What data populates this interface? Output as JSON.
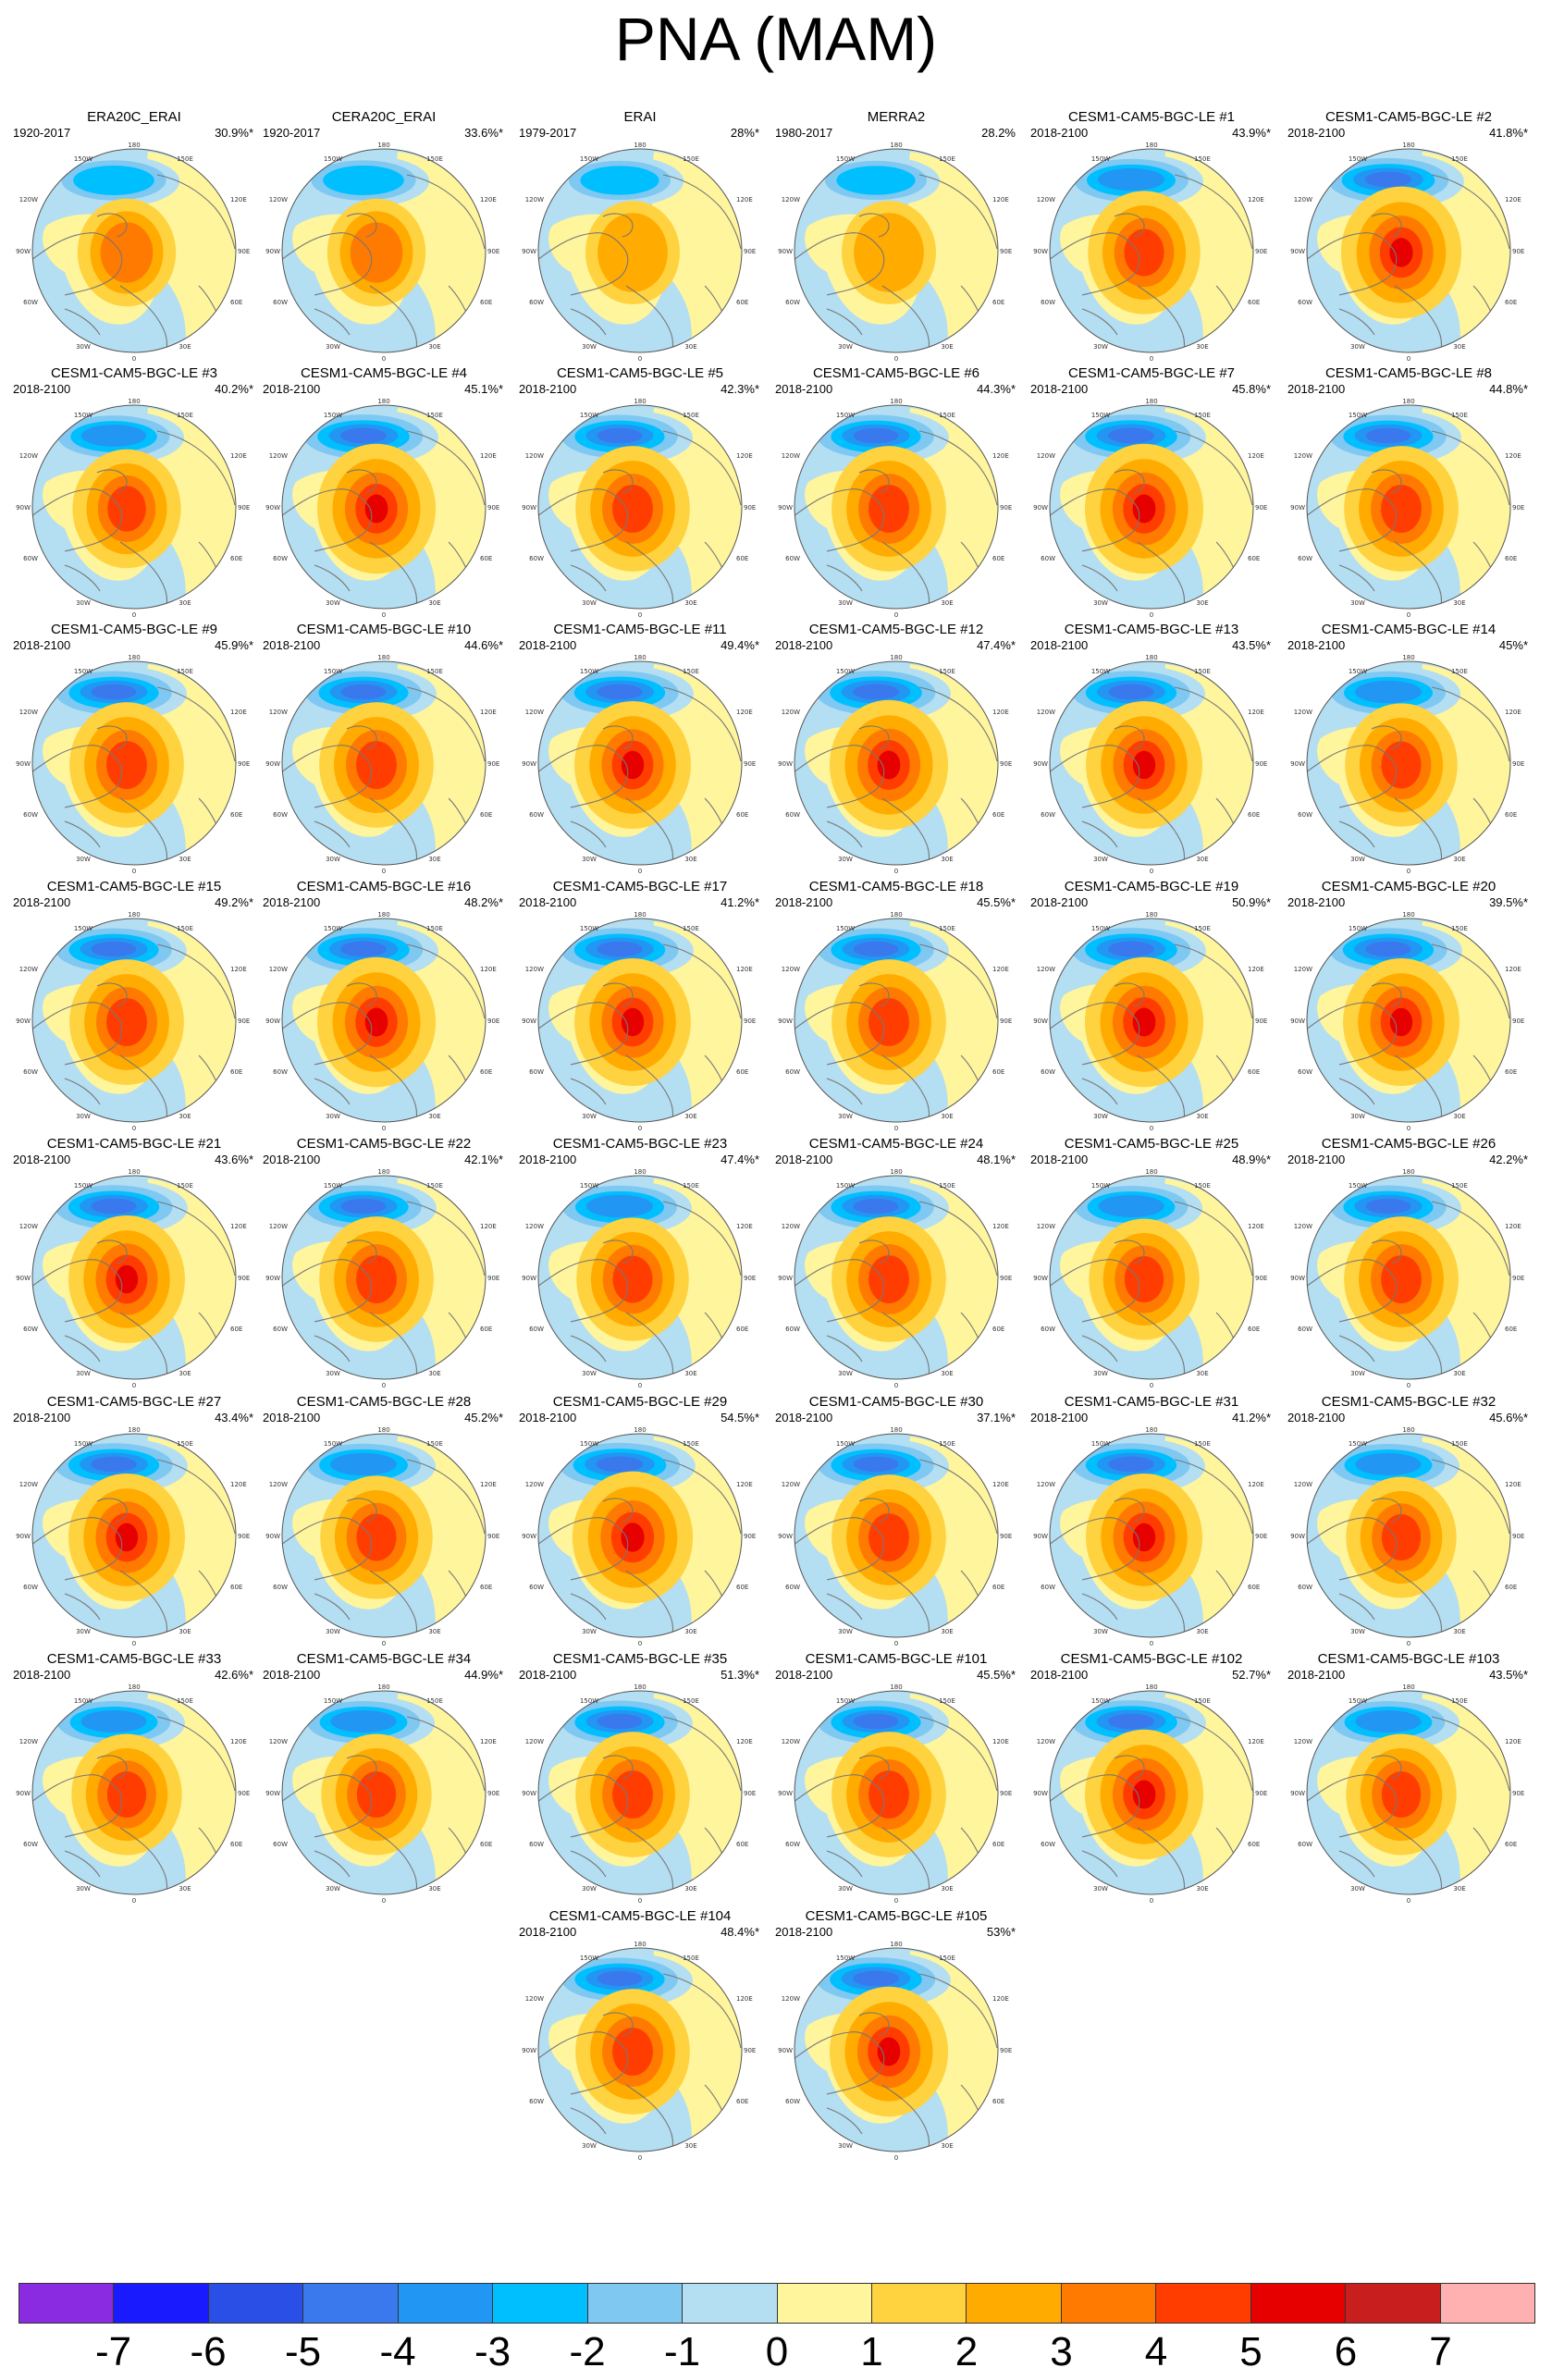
{
  "figure": {
    "title": "PNA (MAM)"
  },
  "colorbar": {
    "colors": [
      "#8a2be2",
      "#1a1aff",
      "#2a4fe6",
      "#3a78ee",
      "#2196f3",
      "#00bfff",
      "#7ec8f2",
      "#b4def2",
      "#fff59d",
      "#ffd23f",
      "#ffab00",
      "#ff7a00",
      "#ff3d00",
      "#e60000",
      "#c81e1e",
      "#ffb0b0"
    ],
    "labels": [
      "-7",
      "-6",
      "-5",
      "-4",
      "-3",
      "-2",
      "-1",
      "0",
      "1",
      "2",
      "3",
      "4",
      "5",
      "6",
      "7"
    ]
  },
  "map_labels": {
    "lon_180": "180",
    "lon_150w": "150W",
    "lon_150e": "150E",
    "lon_120w": "120W",
    "lon_120e": "120E",
    "lon_90w": "90W",
    "lon_90e": "90E",
    "lon_60w": "60W",
    "lon_60e": "60E",
    "lon_30w": "30W",
    "lon_30e": "30E",
    "lon_0": "0"
  },
  "panels": [
    {
      "name": "ERA20C_ERAI",
      "period": "1920-2017",
      "pct": "30.9%*",
      "intensity": 0.45
    },
    {
      "name": "CERA20C_ERAI",
      "period": "1920-2017",
      "pct": "33.6%*",
      "intensity": 0.45
    },
    {
      "name": "ERAI",
      "period": "1979-2017",
      "pct": "28%*",
      "intensity": 0.35
    },
    {
      "name": "MERRA2",
      "period": "1980-2017",
      "pct": "28.2%",
      "intensity": 0.35
    },
    {
      "name": "CESM1-CAM5-BGC-LE #1",
      "period": "2018-2100",
      "pct": "43.9%*",
      "intensity": 0.8
    },
    {
      "name": "CESM1-CAM5-BGC-LE #2",
      "period": "2018-2100",
      "pct": "41.8%*",
      "intensity": 1.0
    },
    {
      "name": "CESM1-CAM5-BGC-LE #3",
      "period": "2018-2100",
      "pct": "40.2%*",
      "intensity": 0.7
    },
    {
      "name": "CESM1-CAM5-BGC-LE #4",
      "period": "2018-2100",
      "pct": "45.1%*",
      "intensity": 0.95
    },
    {
      "name": "CESM1-CAM5-BGC-LE #5",
      "period": "2018-2100",
      "pct": "42.3%*",
      "intensity": 0.85
    },
    {
      "name": "CESM1-CAM5-BGC-LE #6",
      "period": "2018-2100",
      "pct": "44.3%*",
      "intensity": 0.85
    },
    {
      "name": "CESM1-CAM5-BGC-LE #7",
      "period": "2018-2100",
      "pct": "45.8%*",
      "intensity": 0.95
    },
    {
      "name": "CESM1-CAM5-BGC-LE #8",
      "period": "2018-2100",
      "pct": "44.8%*",
      "intensity": 0.85
    },
    {
      "name": "CESM1-CAM5-BGC-LE #9",
      "period": "2018-2100",
      "pct": "45.9%*",
      "intensity": 0.85
    },
    {
      "name": "CESM1-CAM5-BGC-LE #10",
      "period": "2018-2100",
      "pct": "44.6%*",
      "intensity": 0.85
    },
    {
      "name": "CESM1-CAM5-BGC-LE #11",
      "period": "2018-2100",
      "pct": "49.4%*",
      "intensity": 0.9
    },
    {
      "name": "CESM1-CAM5-BGC-LE #12",
      "period": "2018-2100",
      "pct": "47.4%*",
      "intensity": 0.95
    },
    {
      "name": "CESM1-CAM5-BGC-LE #13",
      "period": "2018-2100",
      "pct": "43.5%*",
      "intensity": 0.9
    },
    {
      "name": "CESM1-CAM5-BGC-LE #14",
      "period": "2018-2100",
      "pct": "45%*",
      "intensity": 0.8
    },
    {
      "name": "CESM1-CAM5-BGC-LE #15",
      "period": "2018-2100",
      "pct": "49.2%*",
      "intensity": 0.85
    },
    {
      "name": "CESM1-CAM5-BGC-LE #16",
      "period": "2018-2100",
      "pct": "48.2%*",
      "intensity": 0.95
    },
    {
      "name": "CESM1-CAM5-BGC-LE #17",
      "period": "2018-2100",
      "pct": "41.2%*",
      "intensity": 0.9
    },
    {
      "name": "CESM1-CAM5-BGC-LE #18",
      "period": "2018-2100",
      "pct": "45.5%*",
      "intensity": 0.85
    },
    {
      "name": "CESM1-CAM5-BGC-LE #19",
      "period": "2018-2100",
      "pct": "50.9%*",
      "intensity": 0.95
    },
    {
      "name": "CESM1-CAM5-BGC-LE #20",
      "period": "2018-2100",
      "pct": "39.5%*",
      "intensity": 0.9
    },
    {
      "name": "CESM1-CAM5-BGC-LE #21",
      "period": "2018-2100",
      "pct": "43.6%*",
      "intensity": 0.9
    },
    {
      "name": "CESM1-CAM5-BGC-LE #22",
      "period": "2018-2100",
      "pct": "42.1%*",
      "intensity": 0.85
    },
    {
      "name": "CESM1-CAM5-BGC-LE #23",
      "period": "2018-2100",
      "pct": "47.4%*",
      "intensity": 0.8
    },
    {
      "name": "CESM1-CAM5-BGC-LE #24",
      "period": "2018-2100",
      "pct": "48.1%*",
      "intensity": 0.85
    },
    {
      "name": "CESM1-CAM5-BGC-LE #25",
      "period": "2018-2100",
      "pct": "48.9%*",
      "intensity": 0.75
    },
    {
      "name": "CESM1-CAM5-BGC-LE #26",
      "period": "2018-2100",
      "pct": "42.2%*",
      "intensity": 0.85
    },
    {
      "name": "CESM1-CAM5-BGC-LE #27",
      "period": "2018-2100",
      "pct": "43.4%*",
      "intensity": 0.9
    },
    {
      "name": "CESM1-CAM5-BGC-LE #28",
      "period": "2018-2100",
      "pct": "45.2%*",
      "intensity": 0.8
    },
    {
      "name": "CESM1-CAM5-BGC-LE #29",
      "period": "2018-2100",
      "pct": "54.5%*",
      "intensity": 1.0
    },
    {
      "name": "CESM1-CAM5-BGC-LE #30",
      "period": "2018-2100",
      "pct": "37.1%*",
      "intensity": 0.85
    },
    {
      "name": "CESM1-CAM5-BGC-LE #31",
      "period": "2018-2100",
      "pct": "41.2%*",
      "intensity": 0.9
    },
    {
      "name": "CESM1-CAM5-BGC-LE #32",
      "period": "2018-2100",
      "pct": "45.6%*",
      "intensity": 0.75
    },
    {
      "name": "CESM1-CAM5-BGC-LE #33",
      "period": "2018-2100",
      "pct": "42.6%*",
      "intensity": 0.75
    },
    {
      "name": "CESM1-CAM5-BGC-LE #34",
      "period": "2018-2100",
      "pct": "44.9%*",
      "intensity": 0.75
    },
    {
      "name": "CESM1-CAM5-BGC-LE #35",
      "period": "2018-2100",
      "pct": "51.3%*",
      "intensity": 0.85
    },
    {
      "name": "CESM1-CAM5-BGC-LE #101",
      "period": "2018-2100",
      "pct": "45.5%*",
      "intensity": 0.85
    },
    {
      "name": "CESM1-CAM5-BGC-LE #102",
      "period": "2018-2100",
      "pct": "52.7%*",
      "intensity": 0.95
    },
    {
      "name": "CESM1-CAM5-BGC-LE #103",
      "period": "2018-2100",
      "pct": "43.5%*",
      "intensity": 0.75
    },
    {
      "name": "CESM1-CAM5-BGC-LE #104",
      "period": "2018-2100",
      "pct": "48.4%*",
      "intensity": 0.85
    },
    {
      "name": "CESM1-CAM5-BGC-LE #105",
      "period": "2018-2100",
      "pct": "53%*",
      "intensity": 0.95
    }
  ]
}
